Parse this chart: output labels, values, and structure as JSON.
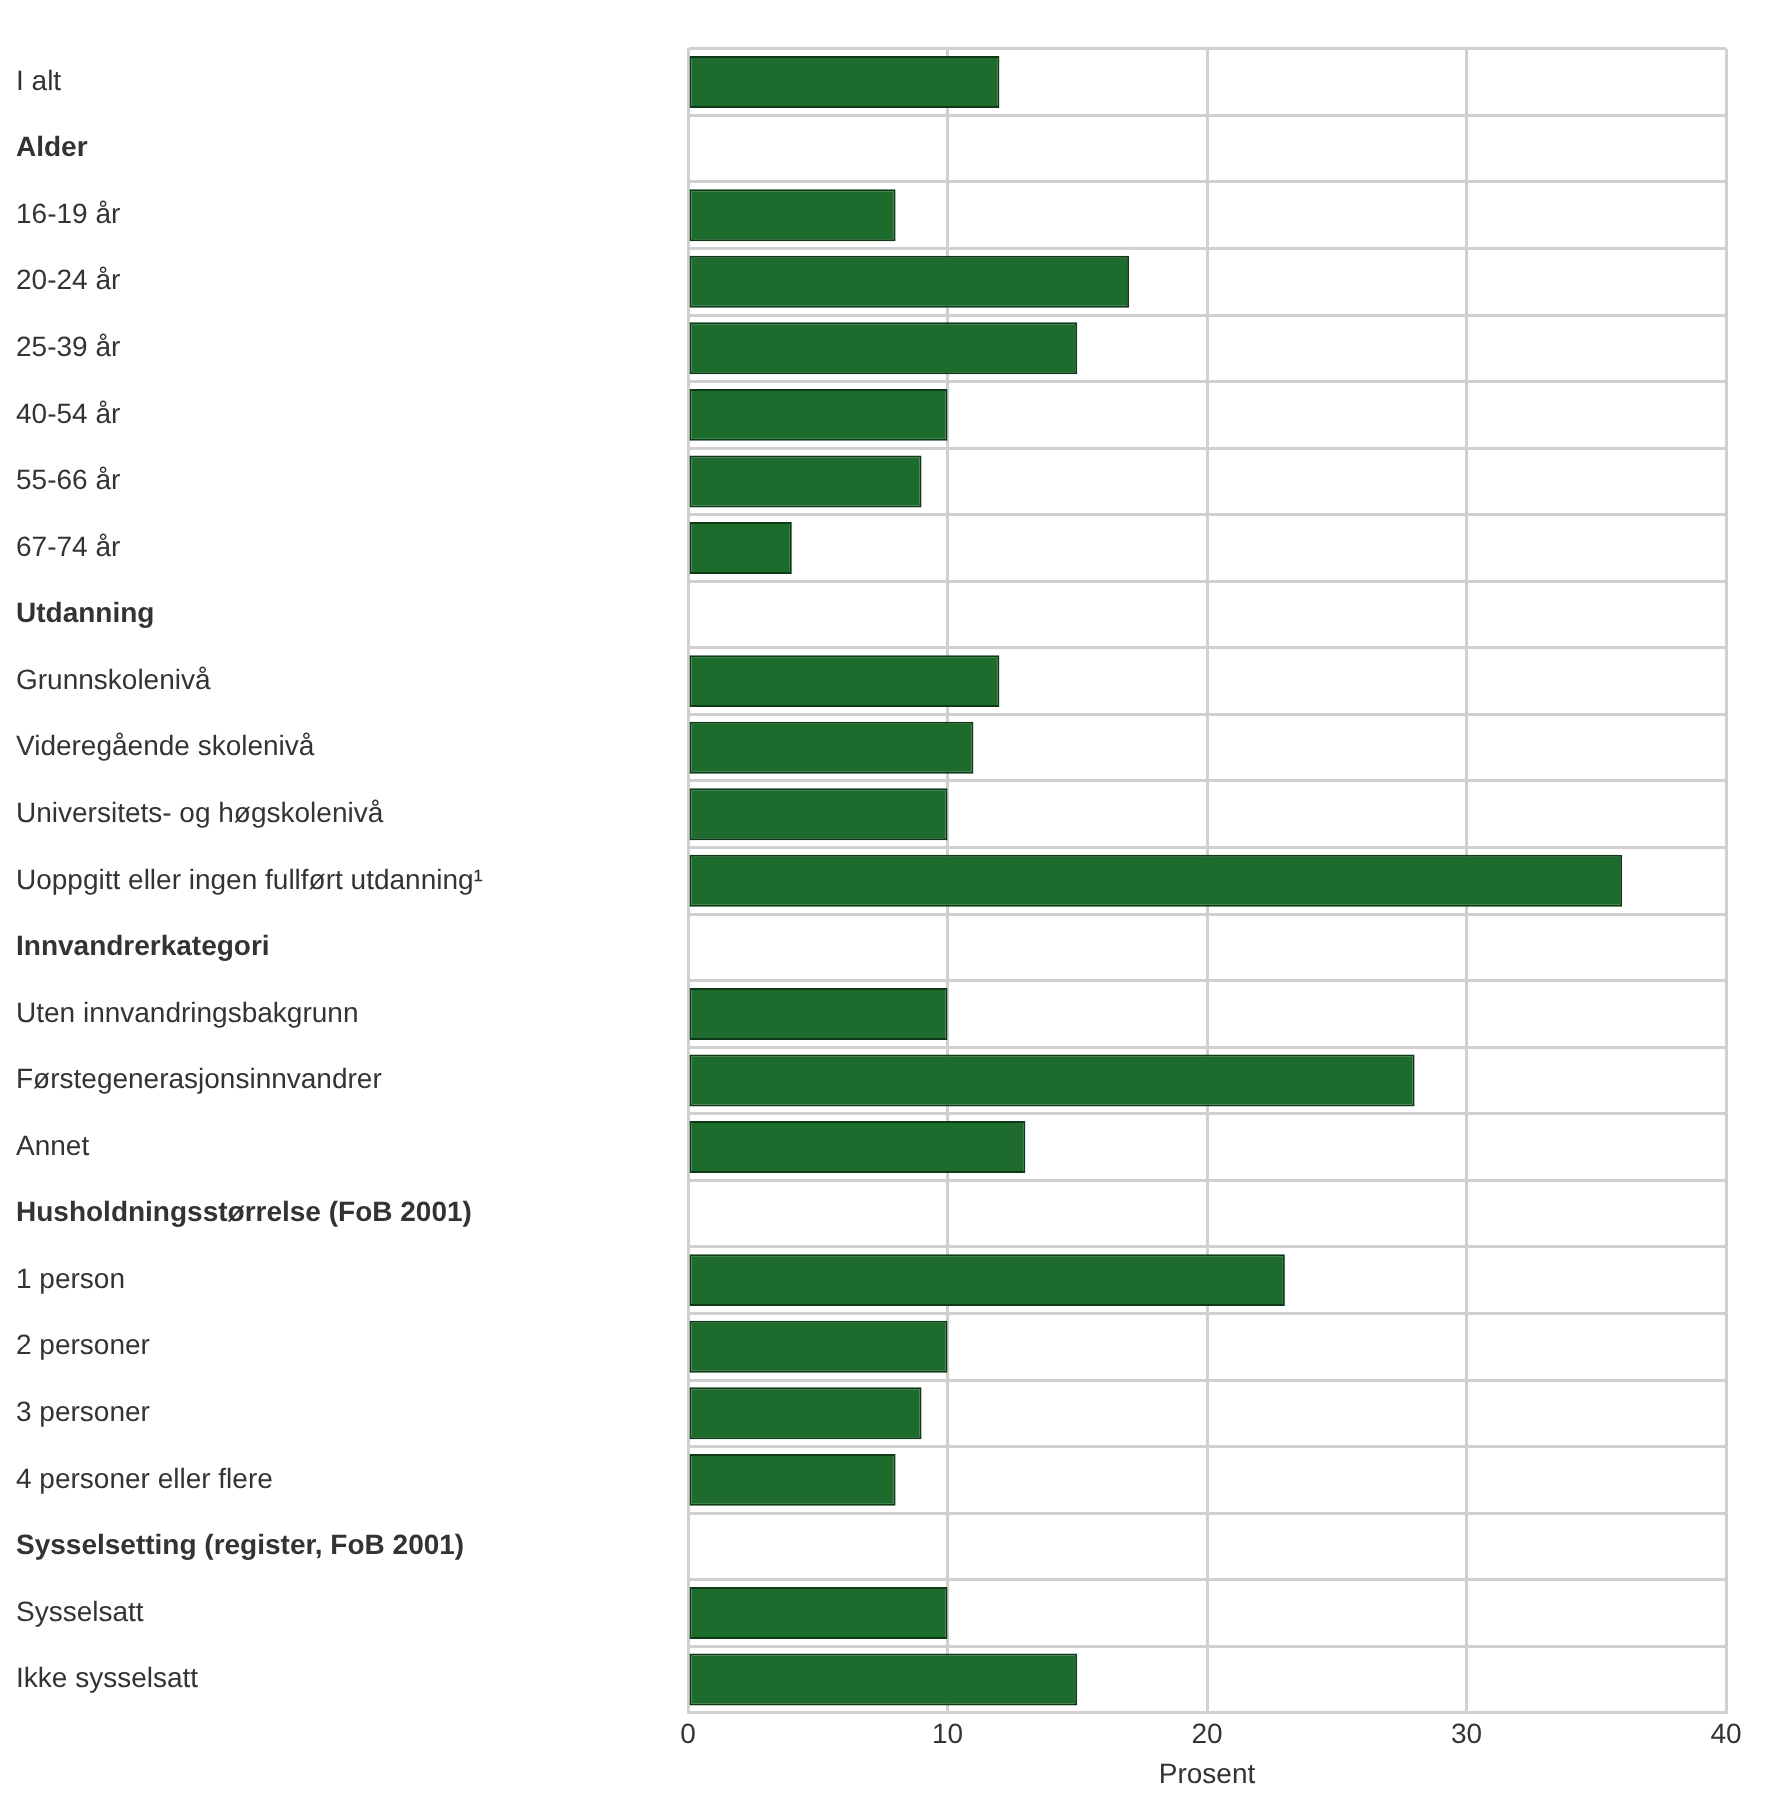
{
  "chart_data": {
    "type": "bar",
    "orientation": "horizontal",
    "xlabel": "Prosent",
    "categories": [
      "I alt",
      "Alder",
      "16-19 år",
      "20-24 år",
      "25-39 år",
      "40-54 år",
      "55-66 år",
      "67-74 år",
      "Utdanning",
      "Grunnskolenivå",
      "Videregående skolenivå",
      "Universitets- og høgskolenivå",
      "Uoppgitt eller ingen fullført utdanning¹",
      "Innvandrerkategori",
      "Uten innvandringsbakgrunn",
      "Førstegenerasjonsinnvandrer",
      "Annet",
      "Husholdningsstørrelse (FoB 2001)",
      "1 person",
      "2 personer",
      "3 personer",
      "4 personer eller flere",
      "Sysselsetting (register, FoB 2001)",
      "Sysselsatt",
      "Ikke sysselsatt"
    ],
    "values": [
      12,
      null,
      8,
      17,
      15,
      10,
      9,
      4,
      null,
      12,
      11,
      10,
      36,
      null,
      10,
      28,
      13,
      null,
      23,
      10,
      9,
      8,
      null,
      10,
      15
    ],
    "color": "#1e6b2e",
    "xlim": [
      0,
      40
    ],
    "xticks": [
      0,
      10,
      20,
      30,
      40
    ],
    "grid": true,
    "legend": false
  }
}
